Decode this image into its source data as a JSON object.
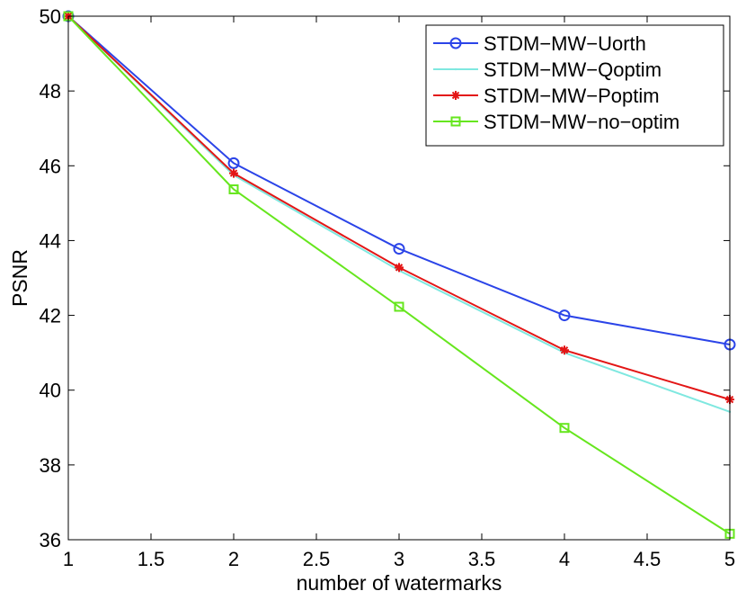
{
  "chart_data": {
    "type": "line",
    "title": "",
    "xlabel": "number of watermarks",
    "ylabel": "PSNR",
    "xlim": [
      1,
      5
    ],
    "ylim": [
      36,
      50
    ],
    "xticks": [
      1,
      1.5,
      2,
      2.5,
      3,
      3.5,
      4,
      4.5,
      5
    ],
    "xtick_labels": [
      "1",
      "1.5",
      "2",
      "2.5",
      "3",
      "3.5",
      "4",
      "4.5",
      "5"
    ],
    "yticks": [
      36,
      38,
      40,
      42,
      44,
      46,
      48,
      50
    ],
    "ytick_labels": [
      "36",
      "38",
      "40",
      "42",
      "44",
      "46",
      "48",
      "50"
    ],
    "grid": false,
    "legend_position": "top-right",
    "x": [
      1,
      2,
      3,
      4,
      5
    ],
    "series": [
      {
        "name": "STDM−MW−Uorth",
        "color": "#2b44e8",
        "marker": "circle",
        "values": [
          50,
          46.07,
          43.78,
          42.0,
          41.22
        ]
      },
      {
        "name": "STDM−MW−Qoptim",
        "color": "#7fe8e0",
        "marker": "point",
        "values": [
          50,
          45.75,
          43.2,
          41.0,
          39.42
        ]
      },
      {
        "name": "STDM−MW−Poptim",
        "color": "#e31616",
        "marker": "asterisk",
        "values": [
          50,
          45.8,
          43.28,
          41.07,
          39.75
        ]
      },
      {
        "name": "STDM−MW−no−optim",
        "color": "#66e61e",
        "marker": "square",
        "values": [
          50,
          45.37,
          42.23,
          38.99,
          36.16
        ]
      }
    ]
  }
}
